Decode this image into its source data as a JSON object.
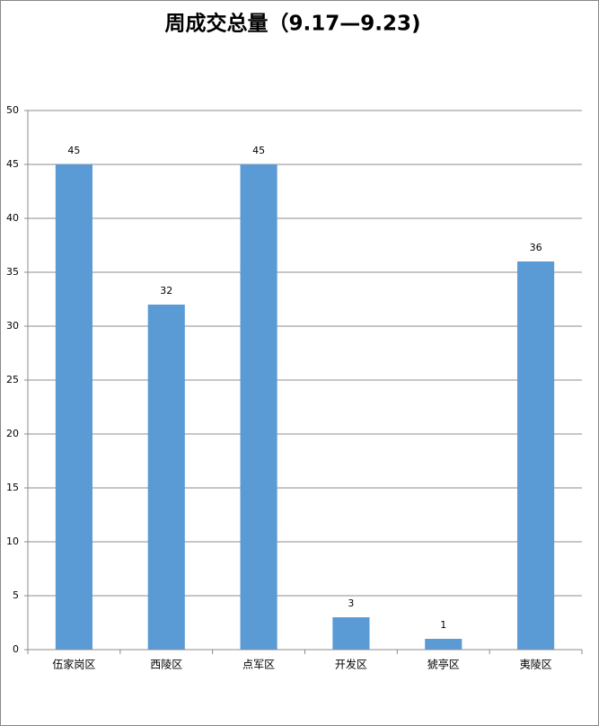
{
  "chart_data": {
    "type": "bar",
    "title": "周成交总量（9.17—9.23)",
    "categories": [
      "伍家岗区",
      "西陵区",
      "点军区",
      "开发区",
      "猇亭区",
      "夷陵区"
    ],
    "values": [
      45,
      32,
      45,
      3,
      1,
      36
    ],
    "color": "#5b9bd5",
    "ylim": [
      0,
      50
    ],
    "yticks": [
      0,
      5,
      10,
      15,
      20,
      25,
      30,
      35,
      40,
      45,
      50
    ],
    "grid": true
  }
}
